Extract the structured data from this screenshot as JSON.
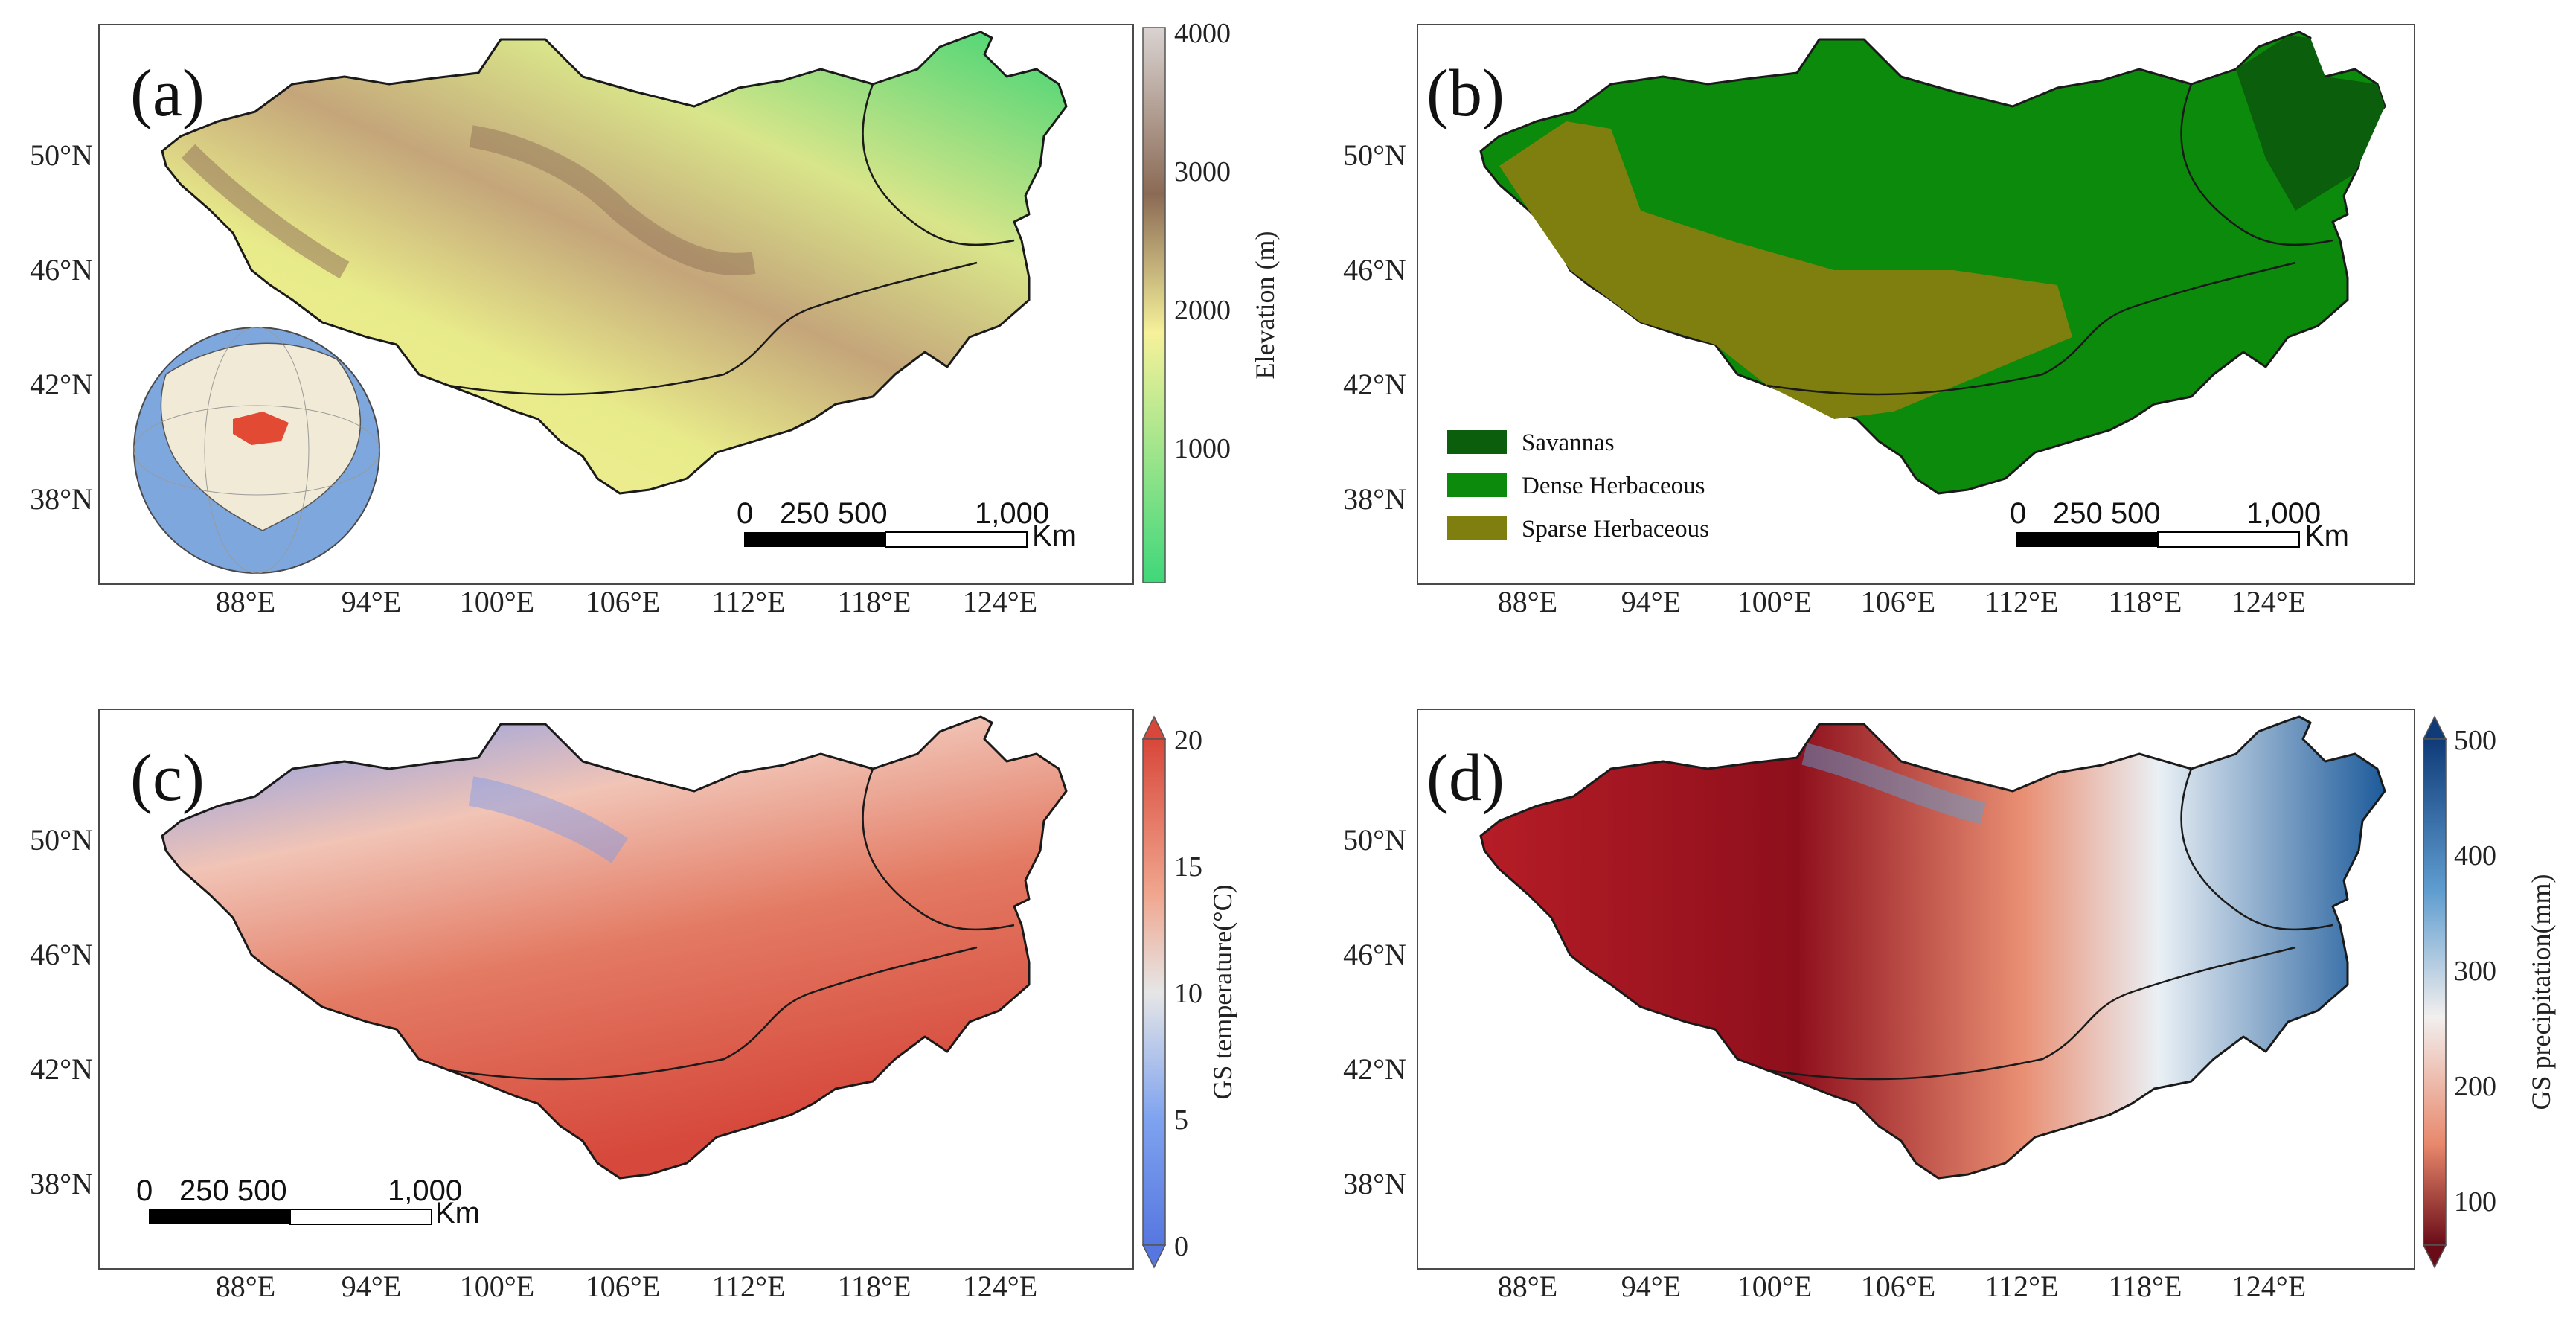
{
  "panels": {
    "a": {
      "letter": "(a)",
      "colorbar_title": "Elevation (m)",
      "colorbar_ticks": [
        "4000",
        "3000",
        "2000",
        "1000"
      ],
      "colorbar_colors": [
        "#d9d3d1",
        "#8b6a55",
        "#f6f19a",
        "#3fd77a"
      ],
      "scale_numbers": [
        "0",
        "250 500",
        "1,000"
      ],
      "scale_unit": "Km"
    },
    "b": {
      "letter": "(b)",
      "legend": [
        {
          "label": "Savannas",
          "color": "#0b5e0b"
        },
        {
          "label": "Dense Herbaceous",
          "color": "#0b8a0b"
        },
        {
          "label": "Sparse Herbaceous",
          "color": "#7f7f10"
        }
      ],
      "scale_numbers": [
        "0",
        "250 500",
        "1,000"
      ],
      "scale_unit": "Km"
    },
    "c": {
      "letter": "(c)",
      "colorbar_title": "GS temperature(°C)",
      "colorbar_ticks": [
        "20",
        "15",
        "10",
        "5",
        "0"
      ],
      "colorbar_colors": [
        "#d8473a",
        "#f0a48c",
        "#e6e6e6",
        "#7fa3ef",
        "#5677e0"
      ],
      "scale_numbers": [
        "0",
        "250 500",
        "1,000"
      ],
      "scale_unit": "Km"
    },
    "d": {
      "letter": "(d)",
      "colorbar_title": "GS precipitation(mm)",
      "colorbar_ticks": [
        "500",
        "400",
        "300",
        "200",
        "100"
      ],
      "colorbar_colors": [
        "#0f3b78",
        "#5f9dd0",
        "#f2efee",
        "#e8886c",
        "#6a0c18"
      ]
    }
  },
  "lon_labels": [
    "88°E",
    "94°E",
    "100°E",
    "106°E",
    "112°E",
    "118°E",
    "124°E"
  ],
  "lat_labels": [
    "50°N",
    "46°N",
    "42°N",
    "38°N"
  ]
}
